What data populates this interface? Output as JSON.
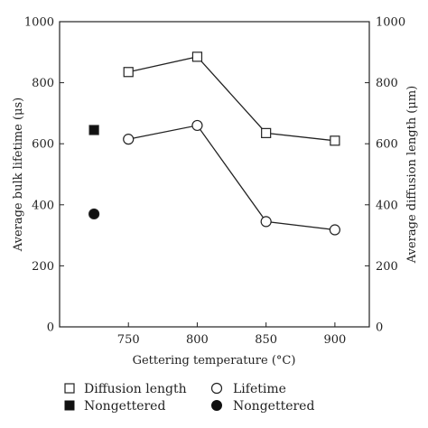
{
  "chart_data": {
    "type": "line",
    "xlabel": "Gettering temperature (°C)",
    "ylabel_left": "Average bulk lifetime (μs)",
    "ylabel_right": "Average diffusion length (μm)",
    "x_ticks": [
      750,
      800,
      850,
      900
    ],
    "ylim_left": [
      0,
      1000
    ],
    "ylim_right": [
      0,
      1000
    ],
    "y_ticks_left": [
      0,
      200,
      400,
      600,
      800,
      1000
    ],
    "y_ticks_right": [
      0,
      200,
      400,
      600,
      800,
      1000
    ],
    "grid": false,
    "legend_position": "bottom",
    "series": [
      {
        "name": "Diffusion length",
        "marker": "open-square",
        "connected": true,
        "x": [
          750,
          800,
          850,
          900
        ],
        "y": [
          835,
          885,
          635,
          610
        ]
      },
      {
        "name": "Lifetime",
        "marker": "open-circle",
        "connected": true,
        "x": [
          750,
          800,
          850,
          900
        ],
        "y": [
          615,
          660,
          345,
          318
        ]
      },
      {
        "name": "Nongettered",
        "marker": "filled-square",
        "connected": false,
        "x": [
          725
        ],
        "y": [
          645
        ]
      },
      {
        "name": "Nongettered",
        "marker": "filled-circle",
        "connected": false,
        "x": [
          725
        ],
        "y": [
          370
        ]
      }
    ]
  },
  "legend": [
    {
      "label": "Diffusion length",
      "marker": "open-square"
    },
    {
      "label": "Lifetime",
      "marker": "open-circle"
    },
    {
      "label": "Nongettered",
      "marker": "filled-square"
    },
    {
      "label": "Nongettered",
      "marker": "filled-circle"
    }
  ]
}
